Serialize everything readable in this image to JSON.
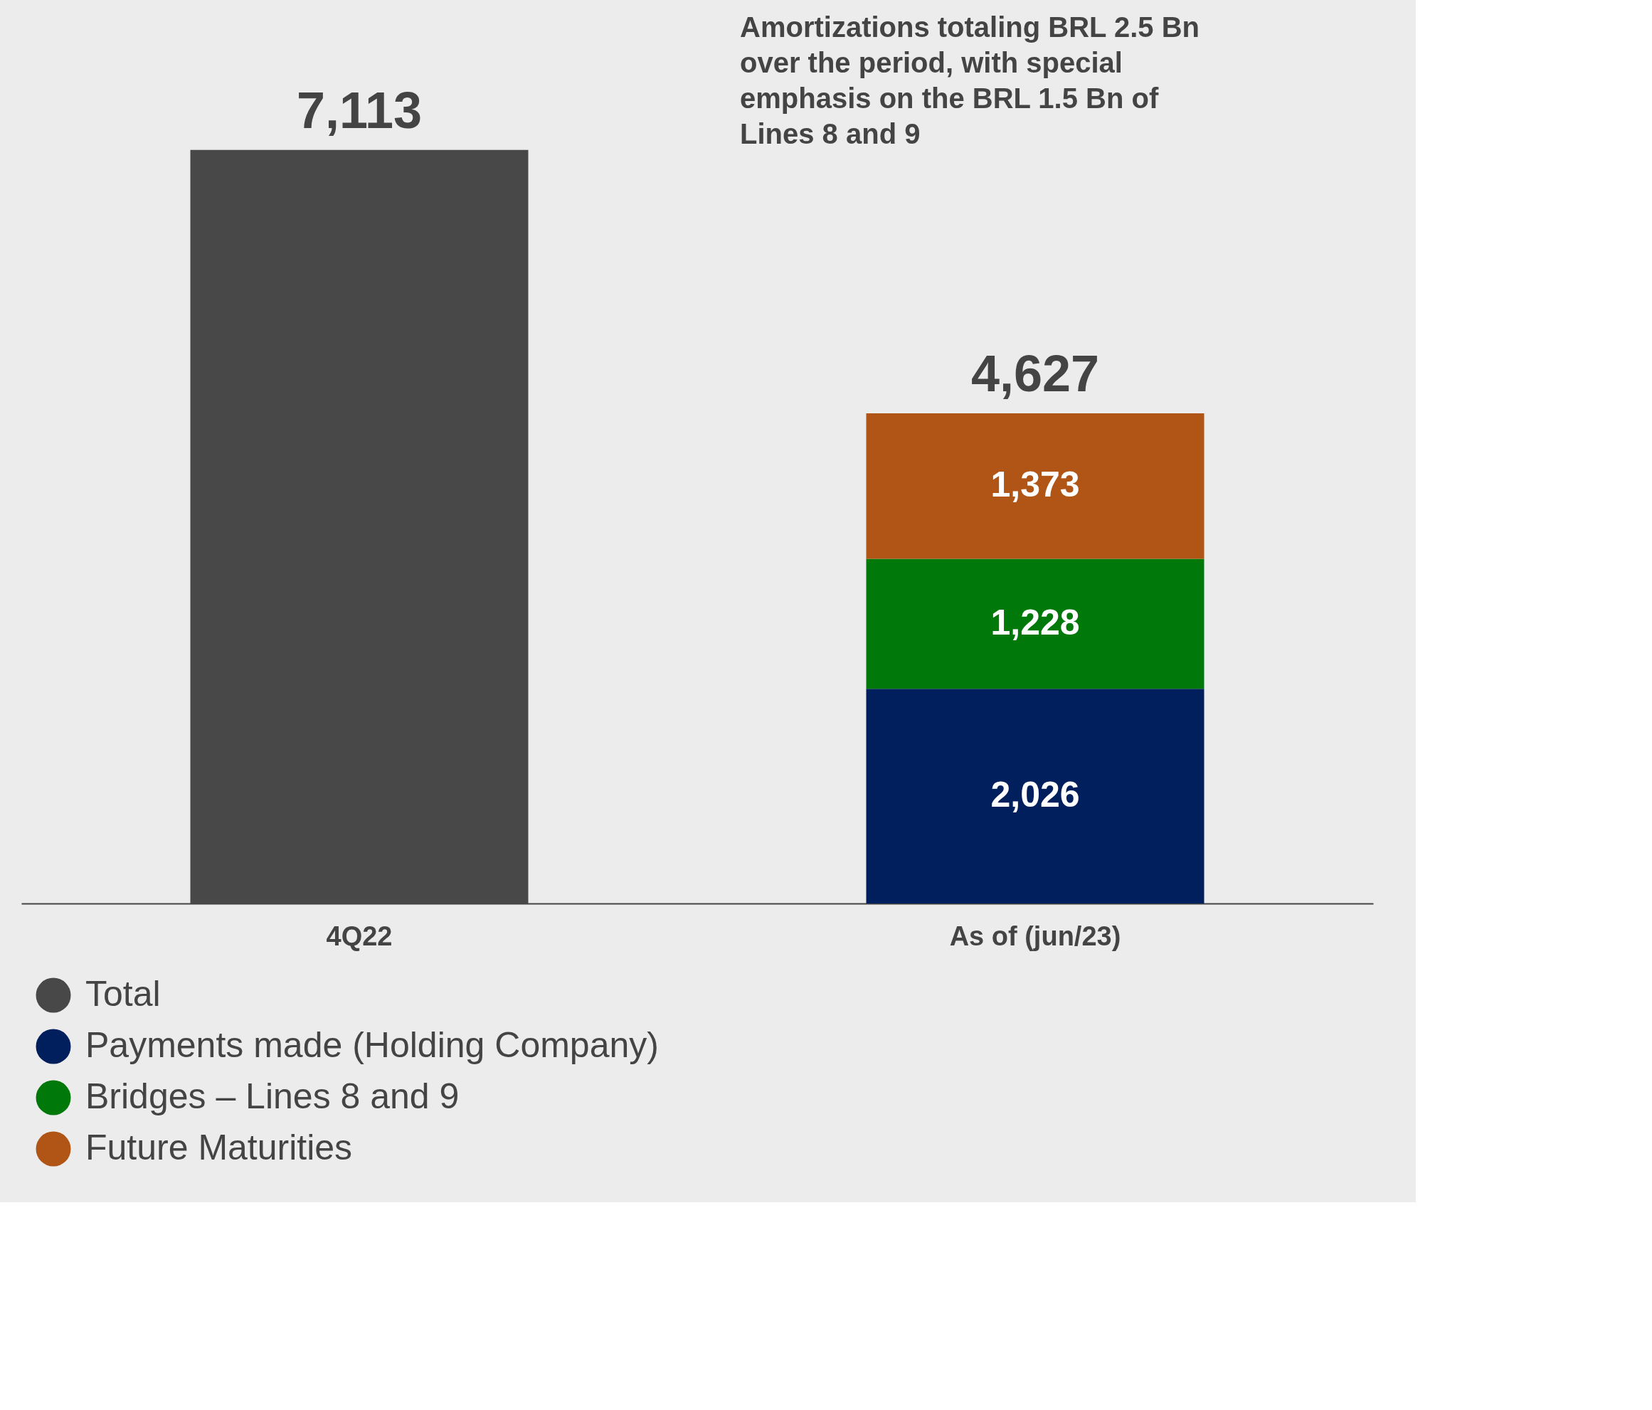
{
  "chart_data": {
    "type": "bar",
    "stacked": true,
    "categories": [
      "4Q22",
      "As of (jun/23)"
    ],
    "series": [
      {
        "name": "Total",
        "color": "#484848",
        "values": [
          7113,
          null
        ],
        "value_labels": [
          null,
          null
        ]
      },
      {
        "name": "Payments made (Holding Company)",
        "color": "#001f5c",
        "values": [
          null,
          2026
        ],
        "value_labels": [
          null,
          "2,026"
        ]
      },
      {
        "name": "Bridges – Lines 8 and 9",
        "color": "#00780a",
        "values": [
          null,
          1228
        ],
        "value_labels": [
          null,
          "1,228"
        ]
      },
      {
        "name": "Future Maturities",
        "color": "#b05515",
        "values": [
          null,
          1373
        ],
        "value_labels": [
          null,
          "1,373"
        ]
      }
    ],
    "totals": [
      "7,113",
      "4,627"
    ],
    "annotations": [
      "Amortizations totaling BRL 2.5 Bn\nover the period, with special\nemphasis on the BRL 1.5 Bn of\nLines 8 and 9"
    ],
    "legend": "bottom",
    "grid": false
  }
}
